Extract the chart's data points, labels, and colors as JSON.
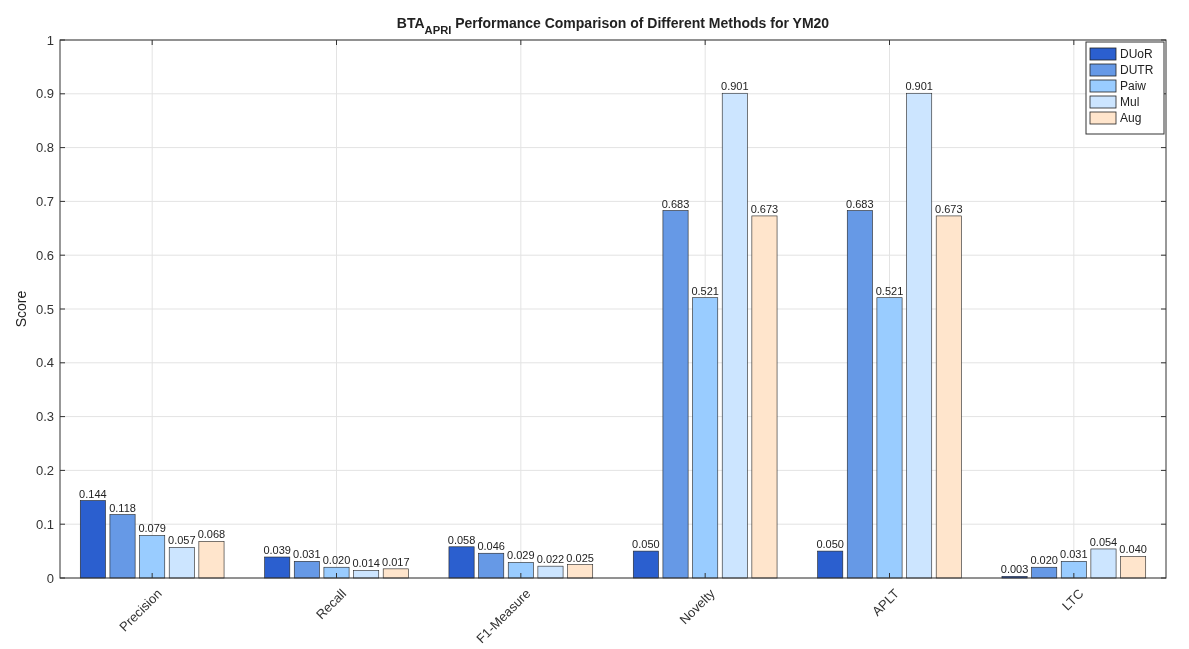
{
  "chart_data": {
    "type": "bar",
    "title": "BTA$_{APRI}$ Performance Comparison of Different Methods for YM20",
    "ylabel": "Score",
    "categories": [
      "Precision",
      "Recall",
      "F1-Measure",
      "Novelty",
      "APLT",
      "LTC"
    ],
    "series": [
      {
        "name": "DUoR",
        "color": "#2b5fcf",
        "values": [
          0.144,
          0.039,
          0.058,
          0.05,
          0.05,
          0.003
        ],
        "value_labels": [
          "0.144",
          "0.039",
          "0.058",
          "0.050",
          "0.050",
          "0.003"
        ]
      },
      {
        "name": "DUTR",
        "color": "#6699e6",
        "values": [
          0.118,
          0.031,
          0.046,
          0.683,
          0.683,
          0.02
        ],
        "value_labels": [
          "0.118",
          "0.031",
          "0.046",
          "0.683",
          "0.683",
          "0.020"
        ]
      },
      {
        "name": "Paiw",
        "color": "#99ccff",
        "values": [
          0.079,
          0.02,
          0.029,
          0.521,
          0.521,
          0.031
        ],
        "value_labels": [
          "0.079",
          "0.020",
          "0.029",
          "0.521",
          "0.521",
          "0.031"
        ]
      },
      {
        "name": "Mul",
        "color": "#cce5ff",
        "values": [
          0.057,
          0.014,
          0.022,
          0.901,
          0.901,
          0.054
        ],
        "value_labels": [
          "0.057",
          "0.014",
          "0.022",
          "0.901",
          "0.901",
          "0.054"
        ]
      },
      {
        "name": "Aug",
        "color": "#ffe5cc",
        "values": [
          0.068,
          0.017,
          0.025,
          0.673,
          0.673,
          0.04
        ],
        "value_labels": [
          "0.068",
          "0.017",
          "0.025",
          "0.673",
          "0.673",
          "0.040"
        ]
      }
    ],
    "ylim": [
      0,
      1
    ],
    "yticks": [
      0,
      0.1,
      0.2,
      0.3,
      0.4,
      0.5,
      0.6,
      0.7,
      0.8,
      0.9,
      1
    ],
    "grid": true,
    "legend": "top right"
  }
}
